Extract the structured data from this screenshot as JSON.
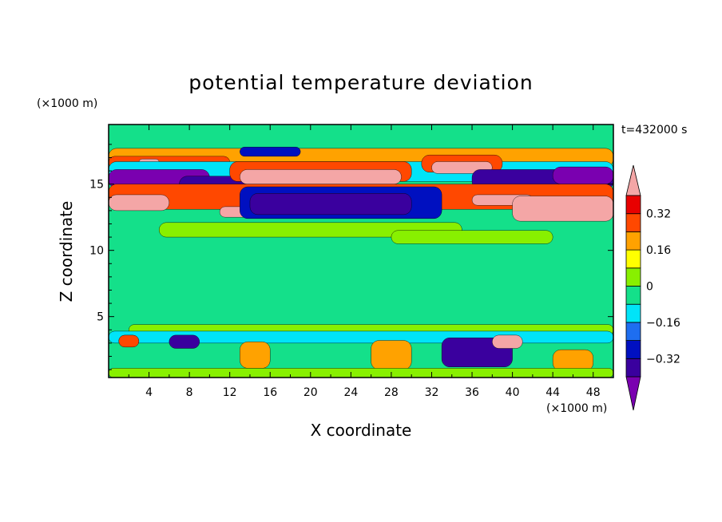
{
  "chart_data": {
    "type": "heatmap",
    "title": "potential temperature deviation",
    "xlabel": "X coordinate",
    "ylabel": "Z coordinate",
    "x_unit": "(×1000 m)",
    "z_unit": "(×1000 m)",
    "time_label": "t=432000 s",
    "xlim": [
      0,
      50
    ],
    "zlim": [
      0.4,
      19.5
    ],
    "x_ticks": [
      4,
      8,
      12,
      16,
      20,
      24,
      28,
      32,
      36,
      40,
      44,
      48
    ],
    "z_ticks": [
      5,
      10,
      15
    ],
    "colorbar": {
      "levels": [
        -0.4,
        -0.32,
        -0.24,
        -0.16,
        -0.08,
        0,
        0.08,
        0.16,
        0.24,
        0.32,
        0.4
      ],
      "tick_labels": [
        "0.32",
        "0.16",
        "0",
        "−0.16",
        "−0.32"
      ],
      "tick_values": [
        0.32,
        0.16,
        0,
        -0.16,
        -0.32
      ],
      "colors": [
        "#7a00b0",
        "#3a009e",
        "#0010c0",
        "#1e6ef0",
        "#00e4f8",
        "#14e08a",
        "#88f000",
        "#ffff00",
        "#ffa200",
        "#ff4800",
        "#e80000",
        "#f4a6a6"
      ],
      "extend": "both"
    },
    "background_level": "#14e08a",
    "features": [
      {
        "x": 0,
        "z": 16.3,
        "w": 50,
        "h": 1.4,
        "color": "#ffa200"
      },
      {
        "x": 0,
        "z": 16.2,
        "w": 12,
        "h": 0.9,
        "color": "#ff4800"
      },
      {
        "x": 3,
        "z": 16.4,
        "w": 2,
        "h": 0.5,
        "color": "#f4a6a6"
      },
      {
        "x": 0,
        "z": 15.2,
        "w": 50,
        "h": 1.5,
        "color": "#00e4f8"
      },
      {
        "x": 0,
        "z": 14.7,
        "w": 10,
        "h": 1.4,
        "color": "#7a00b0"
      },
      {
        "x": 7,
        "z": 14.4,
        "w": 10,
        "h": 1.2,
        "color": "#3a009e"
      },
      {
        "x": 12,
        "z": 15.2,
        "w": 18,
        "h": 1.5,
        "color": "#ff4800"
      },
      {
        "x": 13,
        "z": 15.0,
        "w": 16,
        "h": 1.1,
        "color": "#f4a6a6"
      },
      {
        "x": 13,
        "z": 17.1,
        "w": 6,
        "h": 0.7,
        "color": "#0010c0"
      },
      {
        "x": 31,
        "z": 15.9,
        "w": 8,
        "h": 1.3,
        "color": "#ff4800"
      },
      {
        "x": 32,
        "z": 15.8,
        "w": 6,
        "h": 0.9,
        "color": "#f4a6a6"
      },
      {
        "x": 36,
        "z": 14.6,
        "w": 14,
        "h": 1.5,
        "color": "#3a009e"
      },
      {
        "x": 44,
        "z": 15.0,
        "w": 6,
        "h": 1.3,
        "color": "#7a00b0"
      },
      {
        "x": 0,
        "z": 13.1,
        "w": 50,
        "h": 1.9,
        "color": "#ff4800"
      },
      {
        "x": 0,
        "z": 13.0,
        "w": 6,
        "h": 1.2,
        "color": "#f4a6a6"
      },
      {
        "x": 11,
        "z": 12.5,
        "w": 3,
        "h": 0.8,
        "color": "#f4a6a6"
      },
      {
        "x": 13,
        "z": 12.4,
        "w": 20,
        "h": 2.4,
        "color": "#0010c0"
      },
      {
        "x": 14,
        "z": 12.7,
        "w": 16,
        "h": 1.6,
        "color": "#3a009e"
      },
      {
        "x": 36,
        "z": 13.4,
        "w": 6,
        "h": 0.8,
        "color": "#f4a6a6"
      },
      {
        "x": 40,
        "z": 12.2,
        "w": 10,
        "h": 1.9,
        "color": "#f4a6a6"
      },
      {
        "x": 5,
        "z": 11.0,
        "w": 30,
        "h": 1.1,
        "color": "#88f000"
      },
      {
        "x": 28,
        "z": 10.5,
        "w": 16,
        "h": 1.0,
        "color": "#88f000"
      },
      {
        "x": 2,
        "z": 3.6,
        "w": 48,
        "h": 0.8,
        "color": "#88f000"
      },
      {
        "x": 0,
        "z": 3.0,
        "w": 50,
        "h": 0.9,
        "color": "#00e4f8"
      },
      {
        "x": 1,
        "z": 2.7,
        "w": 2,
        "h": 0.9,
        "color": "#ff4800"
      },
      {
        "x": 6,
        "z": 2.6,
        "w": 3,
        "h": 1.0,
        "color": "#3a009e"
      },
      {
        "x": 13,
        "z": 1.1,
        "w": 3,
        "h": 2.0,
        "color": "#ffa200"
      },
      {
        "x": 26,
        "z": 1.0,
        "w": 4,
        "h": 2.2,
        "color": "#ffa200"
      },
      {
        "x": 33,
        "z": 1.2,
        "w": 7,
        "h": 2.2,
        "color": "#3a009e"
      },
      {
        "x": 38,
        "z": 2.6,
        "w": 3,
        "h": 1.0,
        "color": "#f4a6a6"
      },
      {
        "x": 44,
        "z": 0.9,
        "w": 4,
        "h": 1.6,
        "color": "#ffa200"
      },
      {
        "x": 0,
        "z": 0.4,
        "w": 50,
        "h": 0.7,
        "color": "#88f000"
      }
    ]
  }
}
